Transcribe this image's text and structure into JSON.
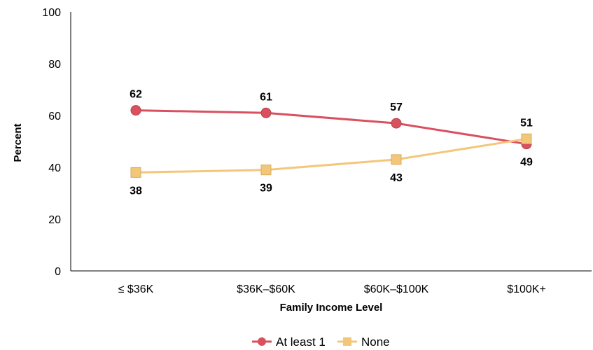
{
  "chart_data": {
    "type": "line",
    "title": "",
    "xlabel": "Family Income Level",
    "ylabel": "Percent",
    "categories": [
      "≤ $36K",
      "$36K–$60K",
      "$60K–$100K",
      "$100K+"
    ],
    "ylim": [
      0,
      100
    ],
    "yticks": [
      0,
      20,
      40,
      60,
      80,
      100
    ],
    "grid": false,
    "legend_position": "bottom",
    "series": [
      {
        "name": "At least 1",
        "values": [
          62,
          61,
          57,
          49
        ],
        "labels": [
          "62",
          "61",
          "57",
          "49"
        ],
        "color": "#d9505f",
        "marker": "circle"
      },
      {
        "name": "None",
        "values": [
          38,
          39,
          43,
          51
        ],
        "labels": [
          "38",
          "39",
          "43",
          "51"
        ],
        "color": "#f2c77a",
        "marker": "square"
      }
    ]
  }
}
